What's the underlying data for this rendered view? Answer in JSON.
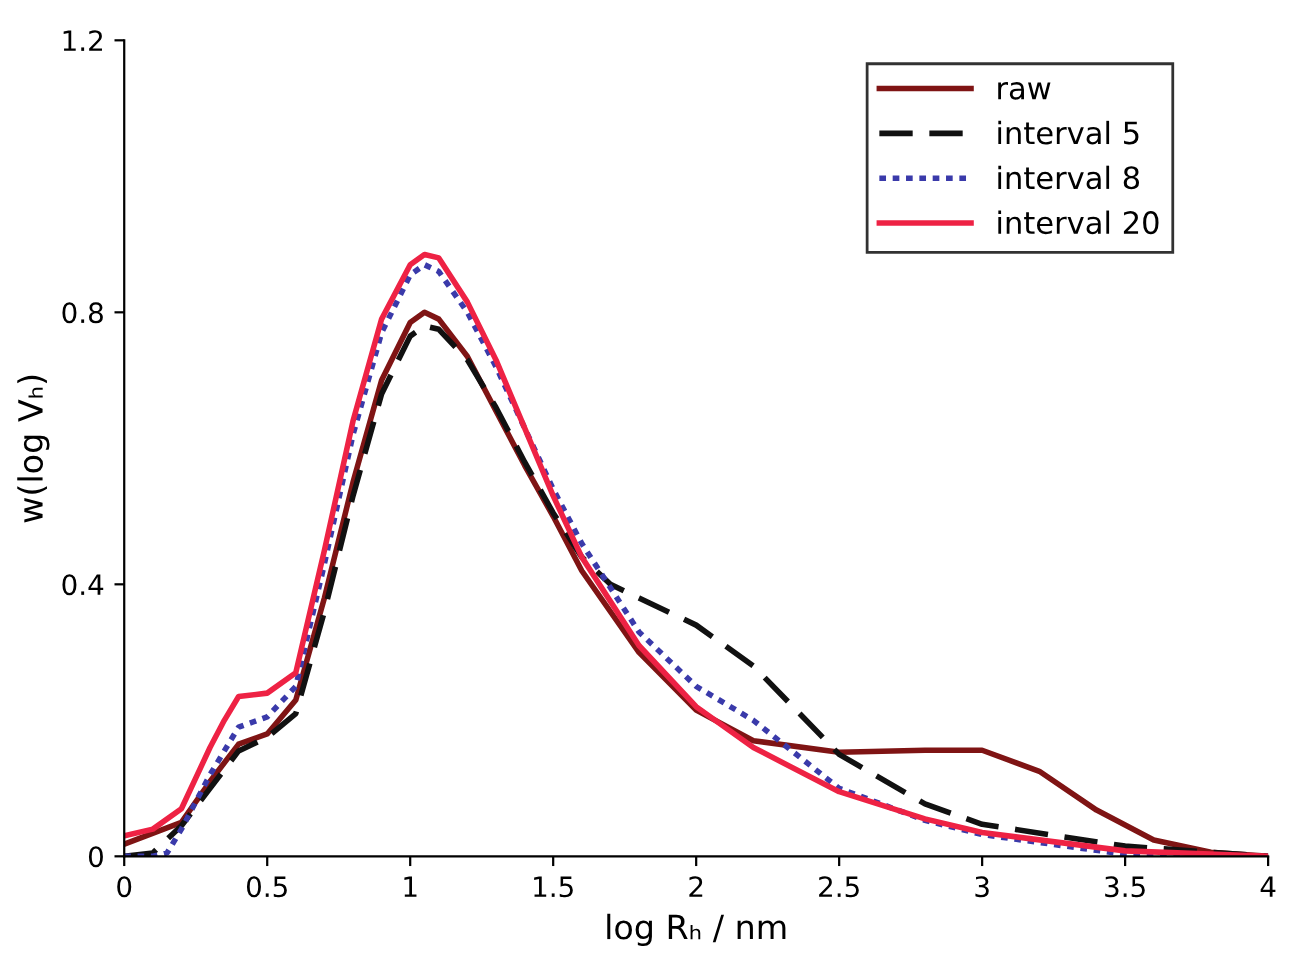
{
  "chart_data": {
    "type": "line",
    "xlabel": "log Rₕ / nm",
    "ylabel": "w(log Vₕ)",
    "xlim": [
      0,
      4
    ],
    "xticks": [
      0,
      0.5,
      1,
      1.5,
      2,
      2.5,
      3,
      3.5,
      4
    ],
    "ylim": [
      0,
      1.2
    ],
    "yticks": [
      0,
      0.4,
      0.8,
      1.2
    ],
    "grid": false,
    "legend": "top right",
    "series": [
      {
        "name": "raw",
        "color": "#7f1414",
        "line_style": "solid",
        "x": [
          0,
          0.2,
          0.3,
          0.4,
          0.5,
          0.6,
          0.7,
          0.8,
          0.9,
          1.0,
          1.05,
          1.1,
          1.2,
          1.3,
          1.4,
          1.5,
          1.6,
          1.8,
          2.0,
          2.2,
          2.5,
          2.8,
          3.0,
          3.2,
          3.4,
          3.6,
          3.8,
          4.0
        ],
        "values": [
          0.018,
          0.05,
          0.11,
          0.165,
          0.18,
          0.23,
          0.38,
          0.55,
          0.7,
          0.785,
          0.8,
          0.79,
          0.735,
          0.655,
          0.575,
          0.5,
          0.42,
          0.3,
          0.215,
          0.17,
          0.153,
          0.156,
          0.156,
          0.125,
          0.068,
          0.024,
          0.006,
          0
        ]
      },
      {
        "name": "interval 5",
        "color": "#111111",
        "line_style": "dashed",
        "x": [
          0,
          0.1,
          0.2,
          0.3,
          0.4,
          0.5,
          0.6,
          0.7,
          0.8,
          0.9,
          1.0,
          1.05,
          1.1,
          1.2,
          1.3,
          1.4,
          1.5,
          1.6,
          1.7,
          1.8,
          2.0,
          2.2,
          2.5,
          2.8,
          3.0,
          3.5,
          4.0
        ],
        "values": [
          0,
          0.005,
          0.045,
          0.1,
          0.155,
          0.175,
          0.21,
          0.36,
          0.53,
          0.68,
          0.765,
          0.78,
          0.775,
          0.73,
          0.66,
          0.58,
          0.505,
          0.44,
          0.4,
          0.38,
          0.34,
          0.28,
          0.15,
          0.077,
          0.047,
          0.015,
          0
        ]
      },
      {
        "name": "interval 8",
        "color": "#3a3aaa",
        "line_style": "dotted",
        "x": [
          0,
          0.1,
          0.15,
          0.2,
          0.3,
          0.4,
          0.5,
          0.6,
          0.7,
          0.8,
          0.9,
          1.0,
          1.05,
          1.1,
          1.2,
          1.3,
          1.4,
          1.5,
          1.6,
          1.8,
          2.0,
          2.2,
          2.5,
          2.8,
          3.0,
          3.5,
          4.0
        ],
        "values": [
          0,
          0,
          0.005,
          0.04,
          0.12,
          0.19,
          0.205,
          0.25,
          0.43,
          0.62,
          0.77,
          0.855,
          0.87,
          0.86,
          0.8,
          0.72,
          0.63,
          0.54,
          0.46,
          0.33,
          0.25,
          0.2,
          0.1,
          0.053,
          0.032,
          0.003,
          0
        ]
      },
      {
        "name": "interval 20",
        "color": "#ee2244",
        "line_style": "solid",
        "x": [
          0,
          0.1,
          0.2,
          0.3,
          0.35,
          0.4,
          0.5,
          0.6,
          0.7,
          0.8,
          0.9,
          1.0,
          1.05,
          1.1,
          1.2,
          1.3,
          1.4,
          1.5,
          1.6,
          1.8,
          2.0,
          2.2,
          2.5,
          2.8,
          3.0,
          3.5,
          4.0
        ],
        "values": [
          0.03,
          0.04,
          0.07,
          0.16,
          0.2,
          0.235,
          0.24,
          0.27,
          0.45,
          0.64,
          0.79,
          0.87,
          0.885,
          0.88,
          0.815,
          0.73,
          0.63,
          0.53,
          0.44,
          0.31,
          0.22,
          0.16,
          0.095,
          0.055,
          0.035,
          0.008,
          0
        ]
      }
    ]
  }
}
